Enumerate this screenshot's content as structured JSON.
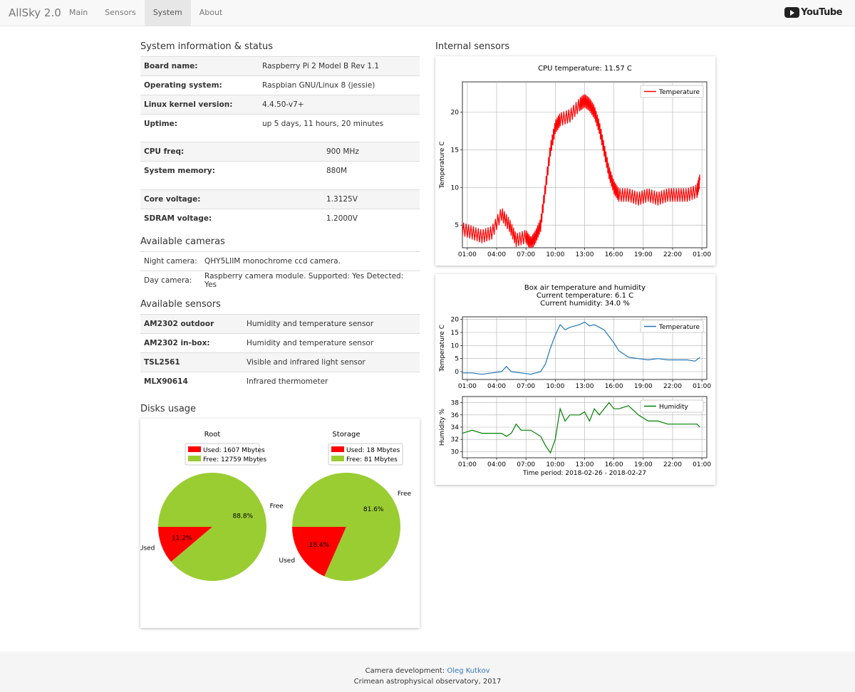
{
  "nav": {
    "brand": "AllSky 2.0",
    "items": [
      {
        "label": "Main"
      },
      {
        "label": "Sensors"
      },
      {
        "label": "System"
      },
      {
        "label": "About"
      }
    ],
    "youtube_label": "YouTube"
  },
  "system": {
    "title": "System information & status",
    "rows": [
      {
        "label": "Board name:",
        "value": "Raspberry Pi 2 Model B Rev 1.1"
      },
      {
        "label": "Operating system:",
        "value": "Raspbian GNU/Linux 8 (jessie)"
      },
      {
        "label": "Linux kernel version:",
        "value": "4.4.50-v7+"
      },
      {
        "label": "Uptime:",
        "value": "up 5 days, 11 hours, 20 minutes"
      }
    ],
    "rows2": [
      {
        "label": "CPU freq:",
        "value": "900 MHz"
      },
      {
        "label": "System memory:",
        "value": "880M"
      }
    ],
    "rows3": [
      {
        "label": "Core voltage:",
        "value": "1.3125V"
      },
      {
        "label": "SDRAM voltage:",
        "value": "1.2000V"
      }
    ]
  },
  "cameras": {
    "title": "Available cameras",
    "rows": [
      {
        "label": "Night camera:",
        "value": "QHY5LIIM monochrome ccd camera."
      },
      {
        "label": "Day camera:",
        "value": "Raspberry camera module. Supported: Yes Detected: Yes"
      }
    ]
  },
  "sensors": {
    "title": "Available sensors",
    "rows": [
      {
        "label": "AM2302 outdoor",
        "value": "Humidity and temperature sensor"
      },
      {
        "label": "AM2302 in-box:",
        "value": "Humidity and temperature sensor"
      },
      {
        "label": "TSL2561",
        "value": "Visible and infrared light sensor"
      },
      {
        "label": "MLX90614",
        "value": "Infrared thermometer"
      }
    ]
  },
  "disks": {
    "title": "Disks usage"
  },
  "internal": {
    "title": "Internal sensors"
  },
  "colors": {
    "red": "#ff0000",
    "green": "#9acd32",
    "blue": "#1f77b4",
    "darkgreen": "#008000"
  },
  "chart_data": [
    {
      "type": "pie",
      "title": "Root",
      "legend": [
        "Used: 1607 Mbytes",
        "Free: 12759 Mbytes"
      ],
      "labels": [
        "Used",
        "Free"
      ],
      "values": [
        11.2,
        88.8
      ],
      "pct_labels": [
        "11.2%",
        "88.8%"
      ],
      "colors": [
        "#ff0000",
        "#9acd32"
      ]
    },
    {
      "type": "pie",
      "title": "Storage",
      "legend": [
        "Used: 18 Mbytes",
        "Free: 81 Mbytes"
      ],
      "labels": [
        "Used",
        "Free"
      ],
      "values": [
        18.4,
        81.6
      ],
      "pct_labels": [
        "18.4%",
        "81.6%"
      ],
      "colors": [
        "#ff0000",
        "#9acd32"
      ]
    },
    {
      "type": "line",
      "title": "CPU temperature: 11.57 C",
      "ylabel": "Temperature C",
      "xlim": [
        0,
        25
      ],
      "ylim": [
        2,
        24
      ],
      "yticks": [
        5,
        10,
        15,
        20
      ],
      "xticks": [
        "01:00",
        "04:00",
        "07:00",
        "10:00",
        "13:00",
        "16:00",
        "19:00",
        "22:00",
        "01:00"
      ],
      "legend_position": "top-right",
      "grid": true,
      "series": [
        {
          "name": "Temperature",
          "color": "#ff0000",
          "noisy": true,
          "points": [
            [
              0,
              4.5
            ],
            [
              1,
              4
            ],
            [
              2,
              3.5
            ],
            [
              3,
              4
            ],
            [
              4,
              6.5
            ],
            [
              4.8,
              5
            ],
            [
              5.5,
              3
            ],
            [
              6.5,
              3.5
            ],
            [
              7,
              2.5
            ],
            [
              7.5,
              3.5
            ],
            [
              8,
              5
            ],
            [
              8.5,
              10
            ],
            [
              9,
              15
            ],
            [
              9.5,
              18
            ],
            [
              10,
              19
            ],
            [
              11,
              19.5
            ],
            [
              12,
              21
            ],
            [
              12.5,
              21.5
            ],
            [
              13,
              21
            ],
            [
              13.5,
              20
            ],
            [
              14,
              18
            ],
            [
              14.5,
              15
            ],
            [
              15,
              12
            ],
            [
              15.5,
              10
            ],
            [
              16,
              9
            ],
            [
              17,
              9
            ],
            [
              18,
              8.5
            ],
            [
              19,
              9
            ],
            [
              20,
              8.5
            ],
            [
              21,
              9
            ],
            [
              22,
              9
            ],
            [
              23,
              9
            ],
            [
              24,
              9.5
            ],
            [
              24.3,
              11
            ]
          ]
        }
      ]
    },
    {
      "type": "line",
      "title": "Box air temperature and humidity",
      "subtitle_lines": [
        "Current temperature: 6.1 C",
        "Current humidity: 34.0 %"
      ],
      "ylabel": "Temperature C",
      "xlim": [
        0,
        25
      ],
      "ylim": [
        -3,
        21
      ],
      "yticks": [
        0,
        5,
        10,
        15,
        20
      ],
      "xticks": [
        "01:00",
        "04:00",
        "07:00",
        "10:00",
        "13:00",
        "16:00",
        "19:00",
        "22:00",
        "01:00"
      ],
      "legend_position": "top-right",
      "grid": true,
      "series": [
        {
          "name": "Temperature",
          "color": "#1f77b4",
          "points": [
            [
              0,
              -0.5
            ],
            [
              1,
              -0.5
            ],
            [
              2,
              -1
            ],
            [
              3,
              -0.5
            ],
            [
              4,
              0
            ],
            [
              4.5,
              2
            ],
            [
              5,
              0
            ],
            [
              6,
              -0.5
            ],
            [
              7,
              -1
            ],
            [
              8,
              0
            ],
            [
              8.5,
              3
            ],
            [
              9,
              9
            ],
            [
              9.5,
              14
            ],
            [
              10,
              18
            ],
            [
              10.5,
              16
            ],
            [
              11,
              17
            ],
            [
              12,
              18
            ],
            [
              12.5,
              19
            ],
            [
              13,
              17.5
            ],
            [
              13.5,
              18
            ],
            [
              14,
              17
            ],
            [
              14.5,
              16
            ],
            [
              15,
              13.5
            ],
            [
              15.5,
              11
            ],
            [
              16,
              8
            ],
            [
              17,
              5.5
            ],
            [
              18,
              5
            ],
            [
              19,
              4.5
            ],
            [
              20,
              5
            ],
            [
              21,
              4.5
            ],
            [
              22,
              4.5
            ],
            [
              23,
              4.5
            ],
            [
              23.8,
              4
            ],
            [
              24.3,
              5.5
            ]
          ]
        }
      ]
    },
    {
      "type": "line",
      "ylabel": "Humidity %",
      "xlabel": "Time period: 2018-02-26 - 2018-02-27",
      "xlim": [
        0,
        25
      ],
      "ylim": [
        29,
        39
      ],
      "yticks": [
        30,
        32,
        34,
        36,
        38
      ],
      "xticks": [
        "01:00",
        "04:00",
        "07:00",
        "10:00",
        "13:00",
        "16:00",
        "19:00",
        "22:00",
        "01:00"
      ],
      "legend_position": "top-right",
      "grid": true,
      "series": [
        {
          "name": "Humidity",
          "color": "#008000",
          "points": [
            [
              0,
              33
            ],
            [
              1,
              33.5
            ],
            [
              2,
              33
            ],
            [
              3,
              33
            ],
            [
              4,
              33
            ],
            [
              4.5,
              32.5
            ],
            [
              5,
              33
            ],
            [
              5.5,
              34.5
            ],
            [
              6,
              33.5
            ],
            [
              7,
              33.5
            ],
            [
              8,
              32.5
            ],
            [
              8.5,
              31
            ],
            [
              9,
              29.8
            ],
            [
              9.5,
              32
            ],
            [
              10,
              37
            ],
            [
              10.5,
              35
            ],
            [
              11,
              36
            ],
            [
              12,
              36
            ],
            [
              12.5,
              36.5
            ],
            [
              13,
              35
            ],
            [
              13.5,
              37
            ],
            [
              14,
              36
            ],
            [
              15,
              38
            ],
            [
              15.5,
              37
            ],
            [
              16,
              37
            ],
            [
              17,
              37.5
            ],
            [
              18,
              36
            ],
            [
              19,
              35
            ],
            [
              20,
              35
            ],
            [
              21,
              34.5
            ],
            [
              22,
              34.5
            ],
            [
              23,
              34.5
            ],
            [
              24,
              34.5
            ],
            [
              24.3,
              34
            ]
          ]
        }
      ]
    }
  ]
}
